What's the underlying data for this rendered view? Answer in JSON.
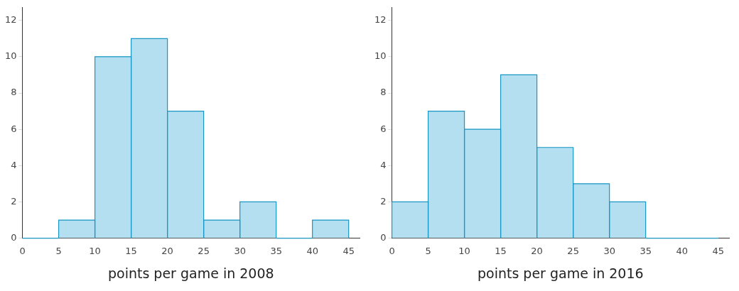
{
  "chart_data": [
    {
      "type": "histogram",
      "xlabel": "points per game in 2008",
      "bins": [
        0,
        5,
        10,
        15,
        20,
        25,
        30,
        35,
        40,
        45
      ],
      "values": [
        0,
        1,
        10,
        11,
        7,
        1,
        2,
        0,
        1
      ],
      "color": "#b3dff0",
      "xlim": [
        0,
        46.5
      ],
      "xticks": [
        0,
        5,
        10,
        15,
        20,
        25,
        30,
        35,
        40,
        45
      ],
      "ylim": [
        0,
        12.7
      ],
      "yticks": [
        0,
        2,
        4,
        6,
        8,
        10,
        12
      ],
      "grid": false,
      "legend": false
    },
    {
      "type": "histogram",
      "xlabel": "points per game in 2016",
      "bins": [
        0,
        5,
        10,
        15,
        20,
        25,
        30,
        35,
        40,
        45
      ],
      "values": [
        2,
        7,
        6,
        9,
        5,
        3,
        2,
        0,
        0
      ],
      "color": "#b3dff0",
      "xlim": [
        0,
        46.5
      ],
      "xticks": [
        0,
        5,
        10,
        15,
        20,
        25,
        30,
        35,
        40,
        45
      ],
      "ylim": [
        0,
        12.7
      ],
      "yticks": [
        0,
        2,
        4,
        6,
        8,
        10,
        12
      ],
      "grid": false,
      "legend": false
    }
  ]
}
